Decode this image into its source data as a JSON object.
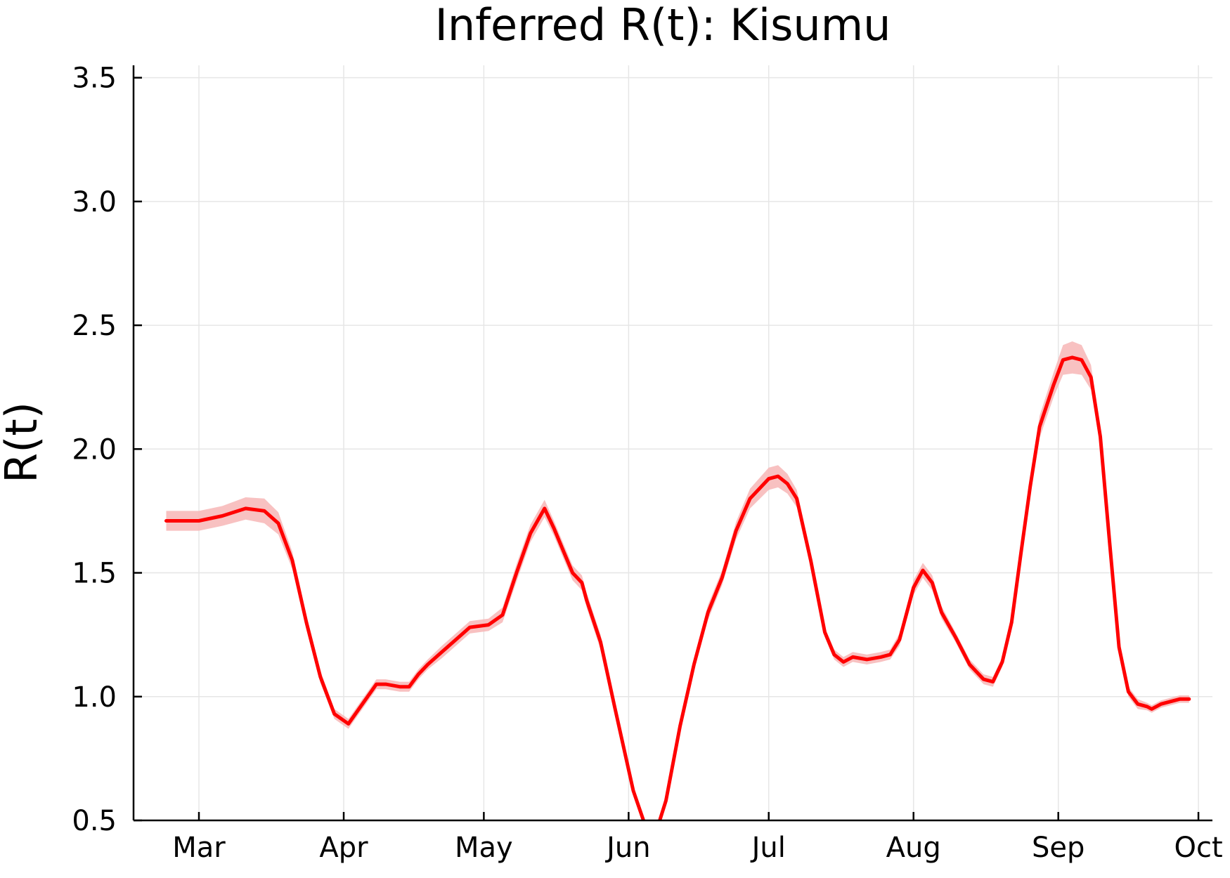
{
  "chart_data": {
    "type": "line",
    "title": "Inferred R(t): Kisumu",
    "xlabel": "",
    "ylabel": "R(t)",
    "x_ticks": [
      {
        "label": "Mar",
        "date": "2020-03-01"
      },
      {
        "label": "Apr",
        "date": "2020-04-01"
      },
      {
        "label": "May",
        "date": "2020-05-01"
      },
      {
        "label": "Jun",
        "date": "2020-06-01"
      },
      {
        "label": "Jul",
        "date": "2020-07-01"
      },
      {
        "label": "Aug",
        "date": "2020-08-01"
      },
      {
        "label": "Sep",
        "date": "2020-09-01"
      },
      {
        "label": "Oct",
        "date": "2020-10-01"
      }
    ],
    "y_ticks": [
      "0.5",
      "1.0",
      "1.5",
      "2.0",
      "2.5",
      "3.0",
      "3.5"
    ],
    "xlim": [
      "2020-02-16",
      "2020-10-04"
    ],
    "ylim": [
      0.5,
      3.55
    ],
    "grid": true,
    "legend": "none",
    "colors": {
      "line": "#ff0000",
      "band": "#f7b6b6"
    },
    "series": [
      {
        "x": [
          "2020-02-23",
          "2020-03-01",
          "2020-03-06",
          "2020-03-11",
          "2020-03-15",
          "2020-03-18",
          "2020-03-21",
          "2020-03-24",
          "2020-03-27",
          "2020-03-30",
          "2020-04-02",
          "2020-04-05",
          "2020-04-08",
          "2020-04-10",
          "2020-04-13",
          "2020-04-15",
          "2020-04-17",
          "2020-04-19",
          "2020-04-22",
          "2020-04-25",
          "2020-04-28",
          "2020-05-02",
          "2020-05-05",
          "2020-05-08",
          "2020-05-11",
          "2020-05-14",
          "2020-05-16",
          "2020-05-18",
          "2020-05-20",
          "2020-05-22",
          "2020-05-23",
          "2020-05-26",
          "2020-05-29",
          "2020-06-02",
          "2020-06-06",
          "2020-06-09",
          "2020-06-12",
          "2020-06-15",
          "2020-06-18",
          "2020-06-21",
          "2020-06-24",
          "2020-06-27",
          "2020-07-01",
          "2020-07-03",
          "2020-07-05",
          "2020-07-07",
          "2020-07-10",
          "2020-07-13",
          "2020-07-15",
          "2020-07-17",
          "2020-07-19",
          "2020-07-22",
          "2020-07-25",
          "2020-07-27",
          "2020-07-29",
          "2020-08-01",
          "2020-08-03",
          "2020-08-05",
          "2020-08-07",
          "2020-08-10",
          "2020-08-13",
          "2020-08-16",
          "2020-08-18",
          "2020-08-20",
          "2020-08-22",
          "2020-08-24",
          "2020-08-26",
          "2020-08-28",
          "2020-08-31",
          "2020-09-02",
          "2020-09-04",
          "2020-09-06",
          "2020-09-08",
          "2020-09-10",
          "2020-09-12",
          "2020-09-14",
          "2020-09-16",
          "2020-09-18",
          "2020-09-20",
          "2020-09-21",
          "2020-09-23",
          "2020-09-25",
          "2020-09-27",
          "2020-09-29"
        ],
        "y": [
          1.71,
          1.71,
          1.73,
          1.76,
          1.75,
          1.7,
          1.55,
          1.3,
          1.08,
          0.93,
          0.89,
          0.97,
          1.05,
          1.05,
          1.04,
          1.04,
          1.09,
          1.13,
          1.18,
          1.23,
          1.28,
          1.29,
          1.33,
          1.5,
          1.66,
          1.76,
          1.68,
          1.59,
          1.5,
          1.46,
          1.39,
          1.22,
          0.96,
          0.62,
          0.4,
          0.58,
          0.88,
          1.13,
          1.34,
          1.48,
          1.67,
          1.8,
          1.88,
          1.89,
          1.86,
          1.8,
          1.55,
          1.26,
          1.17,
          1.14,
          1.16,
          1.15,
          1.16,
          1.17,
          1.23,
          1.44,
          1.51,
          1.46,
          1.34,
          1.24,
          1.13,
          1.07,
          1.06,
          1.14,
          1.3,
          1.58,
          1.85,
          2.09,
          2.26,
          2.36,
          2.37,
          2.36,
          2.29,
          2.05,
          1.62,
          1.2,
          1.02,
          0.97,
          0.96,
          0.95,
          0.97,
          0.98,
          0.99,
          0.99
        ],
        "band_halfwidth": [
          0.04,
          0.04,
          0.04,
          0.045,
          0.05,
          0.045,
          0.035,
          0.03,
          0.025,
          0.02,
          0.02,
          0.02,
          0.02,
          0.02,
          0.02,
          0.02,
          0.02,
          0.02,
          0.025,
          0.025,
          0.025,
          0.025,
          0.03,
          0.035,
          0.035,
          0.035,
          0.03,
          0.03,
          0.03,
          0.03,
          0.03,
          0.03,
          0.03,
          0.02,
          0.02,
          0.02,
          0.02,
          0.025,
          0.03,
          0.03,
          0.035,
          0.04,
          0.045,
          0.045,
          0.04,
          0.035,
          0.03,
          0.02,
          0.02,
          0.02,
          0.02,
          0.02,
          0.02,
          0.02,
          0.025,
          0.03,
          0.03,
          0.03,
          0.025,
          0.02,
          0.02,
          0.02,
          0.02,
          0.02,
          0.025,
          0.035,
          0.04,
          0.045,
          0.05,
          0.06,
          0.065,
          0.06,
          0.05,
          0.04,
          0.03,
          0.025,
          0.02,
          0.02,
          0.015,
          0.015,
          0.015,
          0.015,
          0.015,
          0.015
        ]
      }
    ]
  }
}
